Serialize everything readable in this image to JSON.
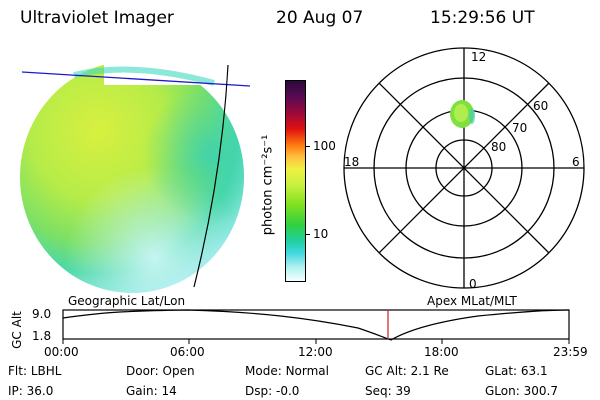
{
  "header": {
    "instrument": "Ultraviolet Imager",
    "date": "20 Aug 07",
    "time": "15:29:56 UT"
  },
  "colorbar": {
    "unit_label": "photon cm⁻²s⁻¹",
    "ticks": [
      "100",
      "10"
    ],
    "colors": [
      "#2a0a3a",
      "#5a0a55",
      "#9a0a3a",
      "#e01010",
      "#ff7a10",
      "#ffc040",
      "#f0f040",
      "#c8f040",
      "#80e020",
      "#30d040",
      "#20d0a0",
      "#40d8e0",
      "#b0f0f0",
      "#f4ffff"
    ]
  },
  "polar_plot": {
    "mlt_labels": {
      "top": "12",
      "right": "6",
      "bottom": "0",
      "left": "18"
    },
    "lat_labels": [
      "60",
      "70",
      "80"
    ]
  },
  "timeline": {
    "ylabel": "GC Alt",
    "yticks": [
      "9.0",
      "1.8"
    ],
    "left_caption": "Geographic Lat/Lon",
    "right_caption": "Apex MLat/MLT",
    "xticks": [
      "00:00",
      "06:00",
      "12:00",
      "18:00",
      "23:59"
    ],
    "current_time": "15:29:56",
    "cursor_color": "#cc2222"
  },
  "status": [
    [
      {
        "k": "Flt:",
        "v": "LBHL"
      },
      {
        "k": "Door:",
        "v": "Open"
      },
      {
        "k": "Mode:",
        "v": "Normal"
      },
      {
        "k": "GC Alt:",
        "v": "2.1 Re"
      },
      {
        "k": "GLat:",
        "v": "63.1"
      }
    ],
    [
      {
        "k": "IP:",
        "v": "36.0"
      },
      {
        "k": "Gain:",
        "v": "14"
      },
      {
        "k": "Dsp:",
        "v": "-0.0"
      },
      {
        "k": "Seq:",
        "v": "39"
      },
      {
        "k": "GLon:",
        "v": "300.7"
      }
    ]
  ]
}
